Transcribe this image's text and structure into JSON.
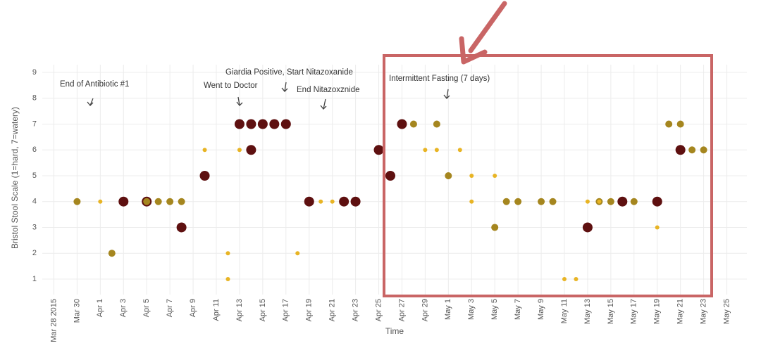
{
  "chart_data": {
    "type": "scatter",
    "y_label": "Bristol Stool Scale (1=hard, 7=watery)",
    "x_label": "Time",
    "xlim": [
      "2015-03-27",
      "2015-05-26"
    ],
    "ylim": [
      0.4,
      9.3
    ],
    "yticks": [
      1,
      2,
      3,
      4,
      5,
      6,
      7,
      8,
      9
    ],
    "xticks": [
      {
        "value": "2015-03-28",
        "label": "Mar 28 2015"
      },
      {
        "value": "2015-03-30",
        "label": "Mar 30"
      },
      {
        "value": "2015-04-01",
        "label": "Apr 1"
      },
      {
        "value": "2015-04-03",
        "label": "Apr 3"
      },
      {
        "value": "2015-04-05",
        "label": "Apr 5"
      },
      {
        "value": "2015-04-07",
        "label": "Apr 7"
      },
      {
        "value": "2015-04-09",
        "label": "Apr 9"
      },
      {
        "value": "2015-04-11",
        "label": "Apr 11"
      },
      {
        "value": "2015-04-13",
        "label": "Apr 13"
      },
      {
        "value": "2015-04-15",
        "label": "Apr 15"
      },
      {
        "value": "2015-04-17",
        "label": "Apr 17"
      },
      {
        "value": "2015-04-19",
        "label": "Apr 19"
      },
      {
        "value": "2015-04-21",
        "label": "Apr 21"
      },
      {
        "value": "2015-04-23",
        "label": "Apr 23"
      },
      {
        "value": "2015-04-25",
        "label": "Apr 25"
      },
      {
        "value": "2015-04-27",
        "label": "Apr 27"
      },
      {
        "value": "2015-04-29",
        "label": "Apr 29"
      },
      {
        "value": "2015-05-01",
        "label": "May 1"
      },
      {
        "value": "2015-05-03",
        "label": "May 3"
      },
      {
        "value": "2015-05-05",
        "label": "May 5"
      },
      {
        "value": "2015-05-07",
        "label": "May 7"
      },
      {
        "value": "2015-05-09",
        "label": "May 9"
      },
      {
        "value": "2015-05-11",
        "label": "May 11"
      },
      {
        "value": "2015-05-13",
        "label": "May 13"
      },
      {
        "value": "2015-05-15",
        "label": "May 15"
      },
      {
        "value": "2015-05-17",
        "label": "May 17"
      },
      {
        "value": "2015-05-19",
        "label": "May 19"
      },
      {
        "value": "2015-05-21",
        "label": "May 21"
      },
      {
        "value": "2015-05-23",
        "label": "May 23"
      },
      {
        "value": "2015-05-25",
        "label": "May 25"
      }
    ],
    "grid": true,
    "series": [
      {
        "color": "#5e1010",
        "x": [
          "2015-04-03",
          "2015-04-05",
          "2015-04-08",
          "2015-04-10",
          "2015-04-13",
          "2015-04-14",
          "2015-04-14",
          "2015-04-15",
          "2015-04-16",
          "2015-04-17",
          "2015-04-19",
          "2015-04-22",
          "2015-04-23",
          "2015-04-25",
          "2015-04-26",
          "2015-04-27",
          "2015-05-13",
          "2015-05-16",
          "2015-05-19",
          "2015-05-21"
        ],
        "values": [
          4,
          4,
          3,
          5,
          7,
          6,
          7,
          7,
          7,
          7,
          4,
          4,
          4,
          6,
          5,
          7,
          3,
          4,
          4,
          6
        ]
      },
      {
        "color": "#a5861f",
        "x": [
          "2015-03-30",
          "2015-04-02",
          "2015-04-05",
          "2015-04-06",
          "2015-04-07",
          "2015-04-08",
          "2015-04-28",
          "2015-04-30",
          "2015-05-01",
          "2015-05-05",
          "2015-05-06",
          "2015-05-07",
          "2015-05-09",
          "2015-05-10",
          "2015-05-14",
          "2015-05-15",
          "2015-05-17",
          "2015-05-20",
          "2015-05-21",
          "2015-05-22",
          "2015-05-23"
        ],
        "values": [
          4,
          2,
          4,
          4,
          4,
          4,
          7,
          7,
          5,
          3,
          4,
          4,
          4,
          4,
          4,
          4,
          4,
          7,
          7,
          6,
          6
        ]
      },
      {
        "color": "#e8b424",
        "x": [
          "2015-04-01",
          "2015-04-10",
          "2015-04-13",
          "2015-04-12",
          "2015-04-12",
          "2015-04-18",
          "2015-04-20",
          "2015-04-21",
          "2015-04-29",
          "2015-04-30",
          "2015-05-02",
          "2015-05-03",
          "2015-05-03",
          "2015-05-05",
          "2015-05-11",
          "2015-05-12",
          "2015-05-13",
          "2015-05-14",
          "2015-05-19"
        ],
        "values": [
          4,
          6,
          6,
          2,
          1,
          2,
          4,
          4,
          6,
          6,
          6,
          5,
          4,
          5,
          1,
          1,
          4,
          4,
          3
        ]
      }
    ],
    "annotations": [
      "End of Antibiotic #1",
      "Went to Doctor",
      "Giardia Positive, Start Nitazoxanide",
      "End Nitazoxznide",
      "Intermittent Fasting (7 days)"
    ]
  }
}
